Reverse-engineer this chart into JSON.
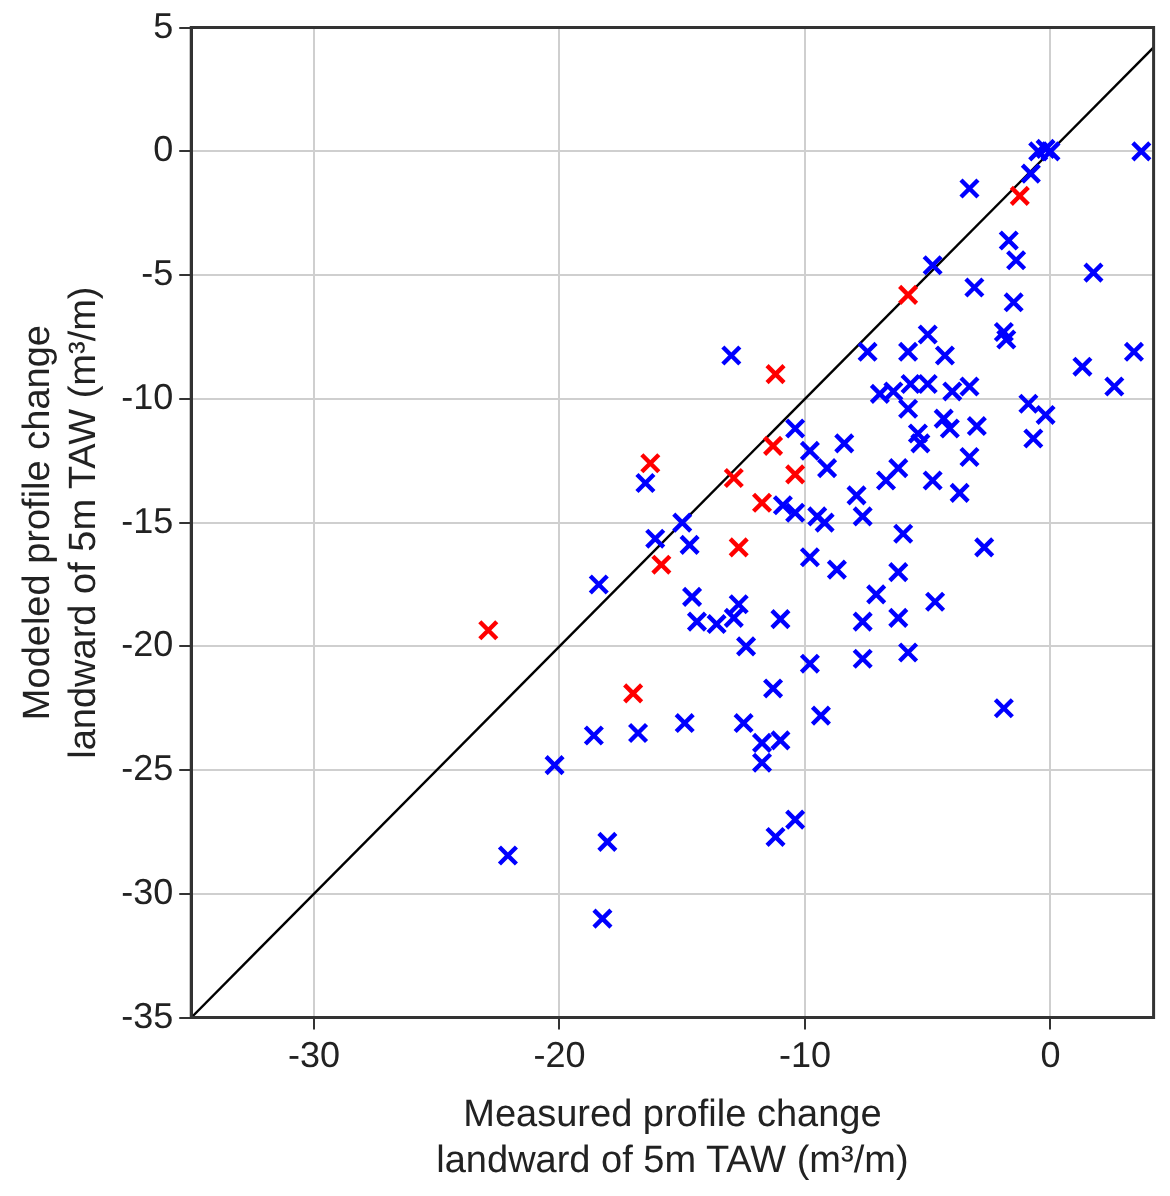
{
  "chart_data": {
    "type": "scatter",
    "xlabel": "Measured profile change\nlandward of 5m TAW (m³/m)",
    "ylabel": "Modeled profile change\nlandward of 5m TAW (m³/m)",
    "xlim": [
      -35,
      4.2
    ],
    "ylim": [
      -35,
      5
    ],
    "xticks": [
      -30,
      -20,
      -10,
      0
    ],
    "yticks": [
      -35,
      -30,
      -25,
      -20,
      -15,
      -10,
      -5,
      0,
      5
    ],
    "grid": true,
    "marker": "cross",
    "series": [
      {
        "color": "#0000ff",
        "x": [
          -0.5,
          0,
          -0.2,
          3.7,
          -3.3,
          -0.8,
          -1.7,
          -1.4,
          -4.8,
          -3.1,
          1.75,
          -1.5,
          -5.0,
          -1.9,
          -1.8,
          -13.0,
          -7.45,
          -5.8,
          -4.3,
          1.3,
          3.4,
          2.6,
          -6.95,
          -6.4,
          -5.7,
          -5.0,
          -4.0,
          -3.3,
          -5.8,
          -0.9,
          -0.2,
          -0.7,
          -4.35,
          -3.0,
          -5.4,
          -4.1,
          -5.3,
          -3.3,
          -10.4,
          -9.8,
          -8.4,
          -9.1,
          -16.5,
          -6.7,
          -6.2,
          -4.8,
          -3.7,
          -7.9,
          -10.9,
          -10.4,
          -9.5,
          -7.65,
          -9.2,
          -15.0,
          -16.1,
          -14.7,
          -6.0,
          -2.7,
          -9.8,
          -8.7,
          -18.4,
          -14.6,
          -6.2,
          -7.1,
          -4.7,
          -12.7,
          -14.4,
          -13.6,
          -12.9,
          -11.0,
          -7.65,
          -6.2,
          -12.4,
          -7.65,
          -5.8,
          -9.8,
          -11.3,
          -9.35,
          -1.9,
          -18.6,
          -16.8,
          -14.9,
          -12.5,
          -11.75,
          -11.0,
          -11.75,
          -20.2,
          -10.4,
          -11.2,
          -18.05,
          -22.1,
          -18.25
        ],
        "values": [
          0,
          0,
          0.1,
          0,
          -1.5,
          -0.9,
          -3.6,
          -4.4,
          -4.6,
          -5.5,
          -4.9,
          -6.1,
          -7.4,
          -7.3,
          -7.6,
          -8.25,
          -8.1,
          -8.1,
          -8.25,
          -8.7,
          -8.1,
          -9.5,
          -9.8,
          -9.7,
          -9.4,
          -9.4,
          -9.7,
          -9.5,
          -10.4,
          -10.2,
          -10.65,
          -11.6,
          -10.8,
          -11.1,
          -11.4,
          -11.2,
          -11.8,
          -12.35,
          -11.2,
          -12.1,
          -11.8,
          -12.8,
          -13.4,
          -13.3,
          -12.8,
          -13.3,
          -13.8,
          -13.9,
          -14.3,
          -14.6,
          -14.75,
          -14.75,
          -15.0,
          -15.0,
          -15.65,
          -15.9,
          -15.45,
          -16.0,
          -16.4,
          -16.9,
          -17.5,
          -18.0,
          -17.0,
          -17.9,
          -18.2,
          -18.3,
          -19.0,
          -19.1,
          -18.85,
          -18.9,
          -19.0,
          -18.85,
          -20.0,
          -20.5,
          -20.25,
          -20.7,
          -21.7,
          -22.8,
          -22.5,
          -23.6,
          -23.5,
          -23.1,
          -23.1,
          -23.9,
          -23.8,
          -24.7,
          -24.8,
          -27.0,
          -27.7,
          -27.9,
          -28.45,
          -31.0
        ]
      },
      {
        "color": "#ff0000",
        "x": [
          -1.25,
          -5.8,
          -11.2,
          -11.3,
          -16.3,
          -12.9,
          -10.4,
          -11.75,
          -12.7,
          -15.85,
          -22.9,
          -17.0
        ],
        "values": [
          -1.8,
          -5.8,
          -9.0,
          -11.9,
          -12.6,
          -13.2,
          -13.05,
          -14.2,
          -16.0,
          -16.7,
          -19.35,
          -21.9
        ]
      },
      {
        "type": "line",
        "color": "#000000",
        "marker": "none",
        "x": [
          -35,
          4.2
        ],
        "values": [
          -35,
          4.2
        ]
      }
    ]
  }
}
